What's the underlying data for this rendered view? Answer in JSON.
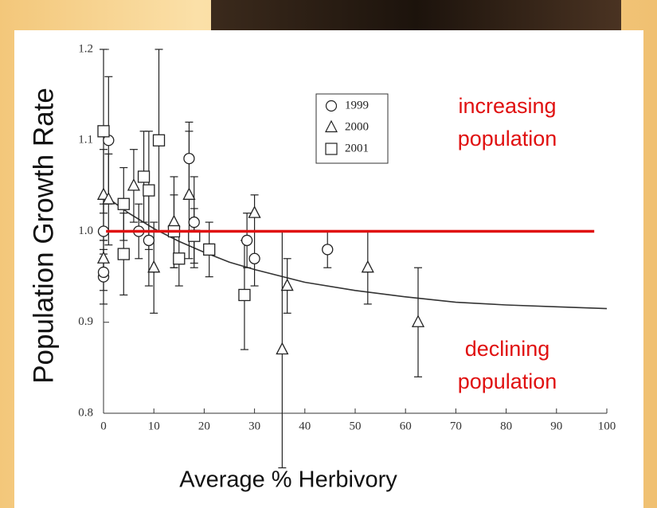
{
  "chart_data": {
    "type": "scatter",
    "x_label": "Average % Herbivory",
    "y_label": "Population Growth Rate",
    "xlim": [
      0,
      100
    ],
    "ylim": [
      0.8,
      1.2
    ],
    "xticks": [
      0,
      10,
      20,
      30,
      40,
      50,
      60,
      70,
      80,
      90,
      100
    ],
    "yticks": [
      {
        "value": 0.8,
        "label": "0.8"
      },
      {
        "value": 0.9,
        "label": "0.9"
      },
      {
        "value": 1.0,
        "label": "1.0"
      },
      {
        "value": 1.1,
        "label": "1.1"
      },
      {
        "value": 1.2,
        "label": "1.2"
      }
    ],
    "series": [
      {
        "name": "1999",
        "marker": "circle",
        "color": "#222",
        "x": [
          0,
          0,
          0,
          1,
          7,
          9,
          17,
          18,
          28.5,
          30,
          44.5
        ],
        "values": [
          1.0,
          0.95,
          0.955,
          1.1,
          1.0,
          0.99,
          1.08,
          1.01,
          0.99,
          0.97,
          0.98
        ],
        "errors": [
          0.03,
          0.03,
          0.02,
          0.07,
          0.03,
          0.05,
          0.04,
          0.05,
          0.03,
          0.03,
          0.02
        ]
      },
      {
        "name": "2000",
        "marker": "triangle",
        "color": "#222",
        "x": [
          0,
          0,
          1,
          6,
          10,
          14,
          17,
          30,
          35.5,
          36.5,
          52.5,
          62.5
        ],
        "values": [
          1.04,
          0.97,
          1.035,
          1.05,
          0.96,
          1.01,
          1.04,
          1.02,
          0.87,
          0.94,
          0.96,
          0.9
        ],
        "errors": [
          0.05,
          0.02,
          0.05,
          0.04,
          0.05,
          0.05,
          0.07,
          0.02,
          0.13,
          0.03,
          0.04,
          0.06
        ]
      },
      {
        "name": "2001",
        "marker": "square",
        "color": "#222",
        "x": [
          0,
          4,
          4,
          8,
          9,
          11,
          14,
          15,
          18,
          21,
          28
        ],
        "values": [
          1.11,
          1.03,
          0.975,
          1.06,
          1.045,
          1.1,
          1.0,
          0.97,
          0.995,
          0.98,
          0.93
        ],
        "errors": [
          0.09,
          0.04,
          0.045,
          0.05,
          0.065,
          0.1,
          0.04,
          0.03,
          0.03,
          0.03,
          0.06
        ]
      }
    ],
    "fit": {
      "color": "#333",
      "x": [
        0,
        5,
        10,
        15,
        20,
        25,
        30,
        40,
        50,
        60,
        70,
        80,
        90,
        100
      ],
      "values": [
        1.04,
        1.02,
        1.003,
        0.989,
        0.977,
        0.966,
        0.958,
        0.944,
        0.935,
        0.928,
        0.922,
        0.919,
        0.917,
        0.915
      ]
    },
    "reference_line": {
      "y": 1.0,
      "x": [
        0.5,
        97.5
      ],
      "color": "#e01010"
    },
    "annotations": [
      {
        "lines": [
          "increasing",
          "population"
        ],
        "color": "#e01010"
      },
      {
        "lines": [
          "declining",
          "population"
        ],
        "color": "#e01010"
      }
    ]
  }
}
